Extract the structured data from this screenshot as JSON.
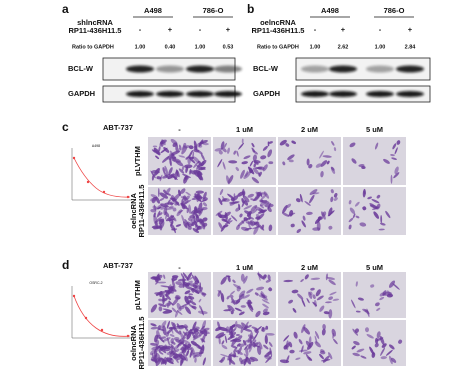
{
  "panel_a": {
    "label": "a",
    "groups": [
      "A498",
      "786-O"
    ],
    "condition": [
      "shlncRNA",
      "RP11-436H11.5"
    ],
    "signs": [
      "-",
      "+",
      "-",
      "+"
    ],
    "ratio_label": "Ratio to GAPDH",
    "ratios": [
      "1.00",
      "0.40",
      "1.00",
      "0.53"
    ],
    "blots": [
      "BCL-W",
      "GAPDH"
    ]
  },
  "panel_b": {
    "label": "b",
    "groups": [
      "A498",
      "786-O"
    ],
    "condition": [
      "oelncRNA",
      "RP11-436H11.5"
    ],
    "signs": [
      "-",
      "+",
      "-",
      "+"
    ],
    "ratio_label": "Ratio to GAPDH",
    "ratios": [
      "1.00",
      "2.62",
      "1.00",
      "2.84"
    ],
    "blots": [
      "BCL-W",
      "GAPDH"
    ]
  },
  "panel_c": {
    "label": "c",
    "drug": "ABT-737",
    "doses": [
      "-",
      "1 uM",
      "2 uM",
      "5 uM"
    ],
    "rows": [
      [
        "pLVTHM"
      ],
      [
        "oelncRNA",
        "RP11-436H11.5"
      ]
    ],
    "inset_title": "A498"
  },
  "panel_d": {
    "label": "d",
    "drug": "ABT-737",
    "doses": [
      "-",
      "1 uM",
      "2 uM",
      "5 uM"
    ],
    "rows": [
      [
        "pLVTHM"
      ],
      [
        "oelncRNA",
        "RP11-436H11.5"
      ]
    ],
    "inset_title": "OSRC-2"
  }
}
